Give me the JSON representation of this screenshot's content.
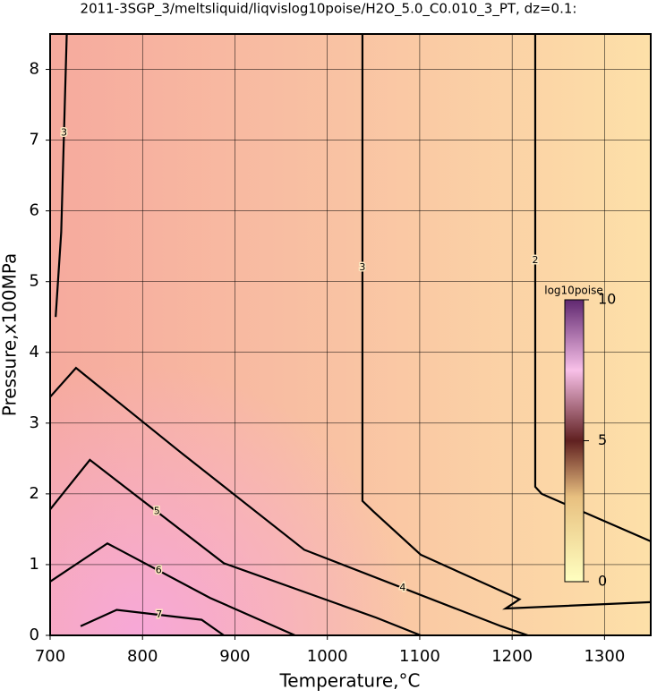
{
  "chart_data": {
    "type": "contour",
    "title": "2011-3SGP_3/meltsliquid/liqvislog10poise/H2O_5.0_C0.010_3_PT, dz=0.1:",
    "x_label": "Temperature,°C",
    "y_label": "Pressure,x100MPa",
    "xlim": [
      700,
      1350
    ],
    "xticks": [
      700,
      800,
      900,
      1000,
      1100,
      1200,
      1300
    ],
    "ylim": [
      0,
      8.5
    ],
    "yticks": [
      0,
      1,
      2,
      3,
      4,
      5,
      6,
      7,
      8
    ],
    "grid": true,
    "contours": [
      {
        "level": 2,
        "x": [
          1225,
          1225,
          1232,
          1350
        ],
        "y": [
          8.5,
          2.1,
          2.0,
          1.33
        ]
      },
      {
        "level": 3,
        "x": [
          1038,
          1038,
          1050,
          1101,
          1208,
          1193,
          1350
        ],
        "y": [
          8.5,
          1.9,
          1.75,
          1.14,
          0.51,
          0.38,
          0.47
        ]
      },
      {
        "level": 3,
        "x": [
          718,
          712,
          706
        ],
        "y": [
          8.5,
          5.7,
          4.5
        ]
      },
      {
        "level": 4,
        "x": [
          700,
          728,
          840,
          975,
          1188,
          1217
        ],
        "y": [
          3.37,
          3.78,
          2.6,
          1.21,
          0.13,
          0
        ]
      },
      {
        "level": 5,
        "x": [
          700,
          743,
          888,
          1053,
          1101
        ],
        "y": [
          1.78,
          2.48,
          1.02,
          0.25,
          0
        ]
      },
      {
        "level": 6,
        "x": [
          700,
          762,
          873,
          965
        ],
        "y": [
          0.76,
          1.3,
          0.53,
          0
        ]
      },
      {
        "level": 7,
        "x": [
          733,
          772,
          864,
          888
        ],
        "y": [
          0.13,
          0.36,
          0.22,
          0
        ]
      }
    ],
    "colorbar": {
      "label": "log10poise",
      "lim": [
        0,
        10
      ],
      "ticks": [
        0,
        5,
        10
      ]
    }
  }
}
